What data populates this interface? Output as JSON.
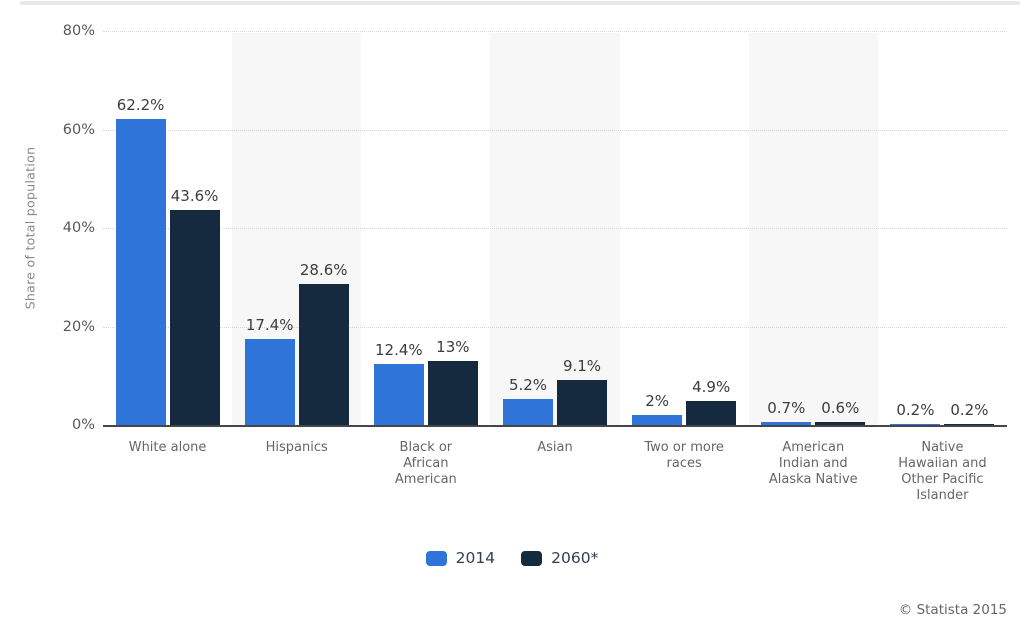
{
  "chart_data": {
    "type": "bar",
    "title": "",
    "ylabel": "Share of total population",
    "xlabel": "",
    "ylim": [
      0,
      80
    ],
    "yticks": [
      {
        "label": "80%",
        "value": 80
      },
      {
        "label": "60%",
        "value": 60
      },
      {
        "label": "40%",
        "value": 40
      },
      {
        "label": "20%",
        "value": 20
      },
      {
        "label": "0%",
        "value": 0
      }
    ],
    "grid": "horizontal-dotted",
    "legend_position": "bottom",
    "band_color": "#f7f7f7",
    "banded_column_indexes": [
      1,
      3,
      5
    ],
    "categories": [
      {
        "name": "White alone",
        "lines": [
          "White alone"
        ]
      },
      {
        "name": "Hispanics",
        "lines": [
          "Hispanics"
        ]
      },
      {
        "name": "Black or African American",
        "lines": [
          "Black or",
          "African",
          "American"
        ]
      },
      {
        "name": "Asian",
        "lines": [
          "Asian"
        ]
      },
      {
        "name": "Two or more races",
        "lines": [
          "Two or more",
          "races"
        ]
      },
      {
        "name": "American Indian and Alaska Native",
        "lines": [
          "American",
          "Indian and",
          "Alaska Native"
        ]
      },
      {
        "name": "Native Hawaiian and Other Pacific Islander",
        "lines": [
          "Native",
          "Hawaiian and",
          "Other Pacific",
          "Islander"
        ]
      }
    ],
    "series": [
      {
        "name": "2014",
        "color": "#2e74d9",
        "values": [
          62.2,
          17.4,
          12.4,
          5.2,
          2,
          0.7,
          0.2
        ],
        "labels": [
          "62.2%",
          "17.4%",
          "12.4%",
          "5.2%",
          "2%",
          "0.7%",
          "0.2%"
        ]
      },
      {
        "name": "2060*",
        "color": "#15293f",
        "values": [
          43.6,
          28.6,
          13,
          9.1,
          4.9,
          0.6,
          0.2
        ],
        "labels": [
          "43.6%",
          "28.6%",
          "13%",
          "9.1%",
          "4.9%",
          "0.6%",
          "0.2%"
        ]
      }
    ]
  },
  "colors": {
    "gridline": "#d6d6d6",
    "axis_line": "#464646",
    "tick_text": "#58585a",
    "category_text": "#666666",
    "value_text": "#3d3d3d",
    "legend_text": "#2f3e54"
  },
  "footer": {
    "copyright": "© Statista 2015"
  }
}
